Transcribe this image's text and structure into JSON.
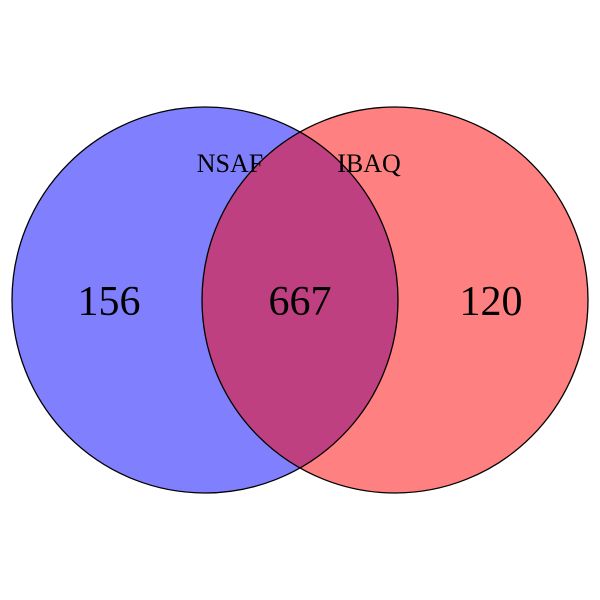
{
  "venn": {
    "sets": [
      {
        "name": "NSAF",
        "color": "#8080ff"
      },
      {
        "name": "IBAQ",
        "color": "#ff8080"
      }
    ],
    "overlap_color": "#bf4080",
    "outline_color": "#000000",
    "counts": {
      "nsaf_only": "156",
      "both": "667",
      "ibaq_only": "120"
    }
  }
}
